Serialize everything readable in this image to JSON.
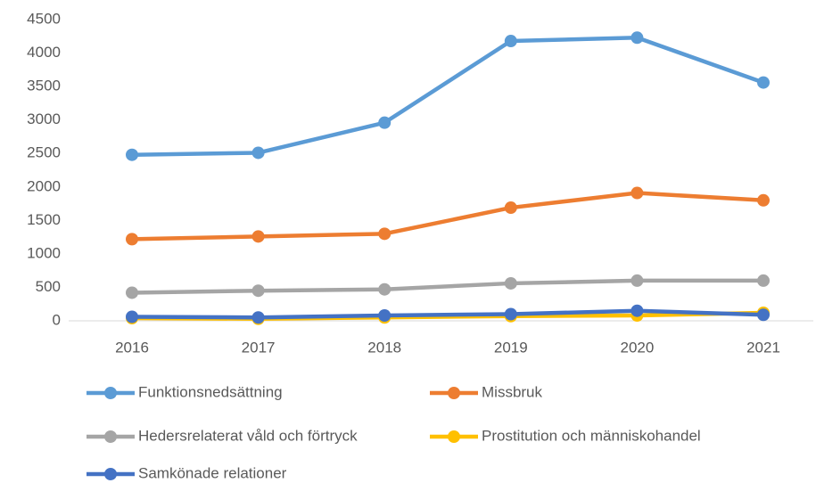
{
  "chart_data": {
    "type": "line",
    "categories": [
      "2016",
      "2017",
      "2018",
      "2019",
      "2020",
      "2021"
    ],
    "series": [
      {
        "name": "Funktionsnedsättning",
        "color": "#5b9bd5",
        "values": [
          2480,
          2510,
          2960,
          4180,
          4230,
          3560
        ]
      },
      {
        "name": "Missbruk",
        "color": "#ed7d31",
        "values": [
          1220,
          1260,
          1300,
          1690,
          1910,
          1800
        ]
      },
      {
        "name": "Hedersrelaterat våld och förtryck",
        "color": "#a5a5a5",
        "values": [
          420,
          450,
          470,
          560,
          600,
          600
        ]
      },
      {
        "name": "Prostitution och människohandel",
        "color": "#ffc000",
        "values": [
          40,
          30,
          50,
          70,
          80,
          120
        ]
      },
      {
        "name": "Samkönade relationer",
        "color": "#4472c4",
        "values": [
          60,
          50,
          80,
          100,
          150,
          90
        ]
      }
    ],
    "ylim": [
      0,
      4500
    ],
    "yticks": [
      0,
      500,
      1000,
      1500,
      2000,
      2500,
      3000,
      3500,
      4000,
      4500
    ],
    "grid": false,
    "legend": "bottom"
  }
}
